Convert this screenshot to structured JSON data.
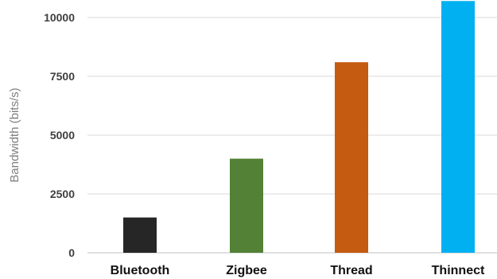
{
  "chart_data": {
    "type": "bar",
    "categories": [
      "Bluetooth",
      "Zigbee",
      "Thread",
      "Thinnect"
    ],
    "values": [
      1500,
      4000,
      8100,
      10700
    ],
    "colors": [
      "#262626",
      "#538135",
      "#c55a11",
      "#00b0f0"
    ],
    "title": "",
    "xlabel": "",
    "ylabel": "Bandwidth (bits/s)",
    "ylim": [
      0,
      10500
    ],
    "yticks": [
      0,
      2500,
      5000,
      7500,
      10000
    ],
    "grid": true,
    "legend": "none"
  }
}
